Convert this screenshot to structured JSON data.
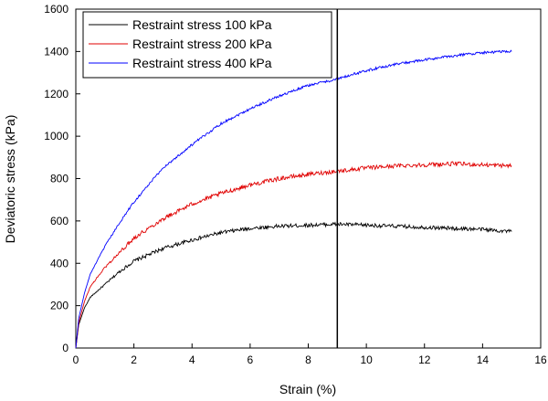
{
  "chart_data": {
    "type": "line",
    "xlabel": "Strain (%)",
    "ylabel": "Deviatoric stress (kPa)",
    "xlim": [
      0,
      16
    ],
    "ylim": [
      0,
      1600
    ],
    "xticks": [
      0,
      2,
      4,
      6,
      8,
      10,
      12,
      14,
      16
    ],
    "yticks": [
      0,
      200,
      400,
      600,
      800,
      1000,
      1200,
      1400,
      1600
    ],
    "legend_position": "top-left",
    "vertical_line_x": 9,
    "series": [
      {
        "name": "Restraint stress 100 kPa",
        "color": "#000000",
        "points": [
          [
            0,
            0
          ],
          [
            0.1,
            110
          ],
          [
            0.3,
            190
          ],
          [
            0.5,
            240
          ],
          [
            1,
            300
          ],
          [
            1.5,
            360
          ],
          [
            2,
            410
          ],
          [
            3,
            470
          ],
          [
            4,
            510
          ],
          [
            5,
            545
          ],
          [
            6,
            565
          ],
          [
            7,
            575
          ],
          [
            8,
            580
          ],
          [
            9,
            585
          ],
          [
            10,
            580
          ],
          [
            11,
            575
          ],
          [
            12,
            570
          ],
          [
            13,
            565
          ],
          [
            14,
            560
          ],
          [
            15,
            550
          ]
        ]
      },
      {
        "name": "Restraint stress 200 kPa",
        "color": "#e00000",
        "points": [
          [
            0,
            0
          ],
          [
            0.1,
            120
          ],
          [
            0.3,
            220
          ],
          [
            0.5,
            290
          ],
          [
            1,
            380
          ],
          [
            1.5,
            450
          ],
          [
            2,
            520
          ],
          [
            3,
            610
          ],
          [
            4,
            680
          ],
          [
            5,
            730
          ],
          [
            6,
            770
          ],
          [
            7,
            800
          ],
          [
            8,
            820
          ],
          [
            9,
            835
          ],
          [
            10,
            850
          ],
          [
            11,
            860
          ],
          [
            12,
            865
          ],
          [
            13,
            870
          ],
          [
            14,
            865
          ],
          [
            15,
            860
          ]
        ]
      },
      {
        "name": "Restraint stress 400 kPa",
        "color": "#0000ff",
        "points": [
          [
            0,
            0
          ],
          [
            0.1,
            140
          ],
          [
            0.3,
            260
          ],
          [
            0.5,
            350
          ],
          [
            1,
            480
          ],
          [
            1.5,
            590
          ],
          [
            2,
            690
          ],
          [
            3,
            850
          ],
          [
            4,
            960
          ],
          [
            5,
            1060
          ],
          [
            6,
            1130
          ],
          [
            7,
            1190
          ],
          [
            8,
            1240
          ],
          [
            9,
            1270
          ],
          [
            10,
            1310
          ],
          [
            11,
            1340
          ],
          [
            12,
            1360
          ],
          [
            13,
            1380
          ],
          [
            14,
            1395
          ],
          [
            15,
            1400
          ]
        ]
      }
    ]
  }
}
